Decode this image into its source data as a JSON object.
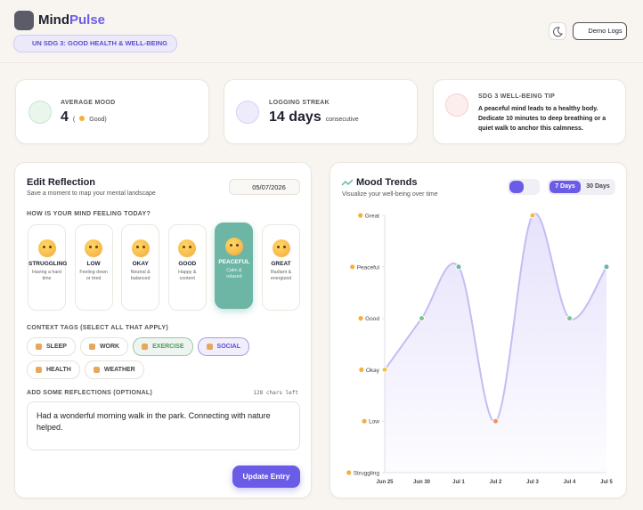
{
  "header": {
    "brand_main": "Mind",
    "brand_accent": "Pulse",
    "badge": "UN SDG 3: GOOD HEALTH & WELL-BEING",
    "demo_button": "Demo Logs"
  },
  "stats": {
    "average_mood": {
      "label": "AVERAGE MOOD",
      "value": 4,
      "detail_open": "(",
      "detail": "Good)"
    },
    "streak": {
      "label": "LOGGING STREAK",
      "value": "14 days",
      "detail": "consecutive"
    },
    "tip": {
      "label": "SDG 3 WELL-BEING TIP",
      "text": "A peaceful mind leads to a healthy body. Dedicate 10 minutes to deep breathing or a quiet walk to anchor this calmness."
    }
  },
  "reflection": {
    "title": "Edit Reflection",
    "subtitle": "Save a moment to map your mental landscape",
    "date": "05/07/2026",
    "mood_prompt": "HOW IS YOUR MIND FEELING TODAY?",
    "moods": [
      {
        "name": "STRUGGLING",
        "description": "Having a hard time"
      },
      {
        "name": "LOW",
        "description": "Feeling down or tired"
      },
      {
        "name": "OKAY",
        "description": "Neutral & balanced"
      },
      {
        "name": "GOOD",
        "description": "Happy & content"
      },
      {
        "name": "PEACEFUL",
        "description": "Calm & relaxed",
        "selected": true
      },
      {
        "name": "GREAT",
        "description": "Radiant & energized"
      }
    ],
    "tags_label": "CONTEXT TAGS (SELECT ALL THAT APPLY)",
    "tags": [
      {
        "name": "SLEEP"
      },
      {
        "name": "WORK"
      },
      {
        "name": "EXERCISE",
        "selected": true,
        "color": "#4f9a5e"
      },
      {
        "name": "SOCIAL",
        "selected": true,
        "color": "#5b4fd0"
      },
      {
        "name": "HEALTH"
      },
      {
        "name": "WEATHER"
      }
    ],
    "notes_label": "ADD SOME REFLECTIONS (OPTIONAL)",
    "chars_left": "128 chars left",
    "notes": "Had a wonderful morning walk in the park. Connecting with nature helped.",
    "button": "Update Entry"
  },
  "trends": {
    "title": "Mood Trends",
    "subtitle": "Visualize your well-being over time",
    "ranges": [
      "7 Days",
      "30 Days"
    ],
    "selected_range": 0
  },
  "chart_data": {
    "type": "line",
    "categories": [
      "Jun 25",
      "Jun 30",
      "Jul 1",
      "Jul 2",
      "Jul 3",
      "Jul 4",
      "Jul 5"
    ],
    "values": [
      2,
      3,
      4,
      1,
      5,
      3,
      4
    ],
    "ylim": [
      0,
      5
    ],
    "yticks": [
      {
        "value": 0,
        "label": "Struggling"
      },
      {
        "value": 1,
        "label": "Low"
      },
      {
        "value": 2,
        "label": "Okay"
      },
      {
        "value": 3,
        "label": "Good"
      },
      {
        "value": 4,
        "label": "Peaceful"
      },
      {
        "value": 5,
        "label": "Great"
      }
    ],
    "line_color": "#c4bdf0",
    "point_colors": [
      "#f5c242",
      "#7cc48a",
      "#6db5a5",
      "#f0955a",
      "#f5b942",
      "#7cc48a",
      "#6db5a5"
    ]
  }
}
